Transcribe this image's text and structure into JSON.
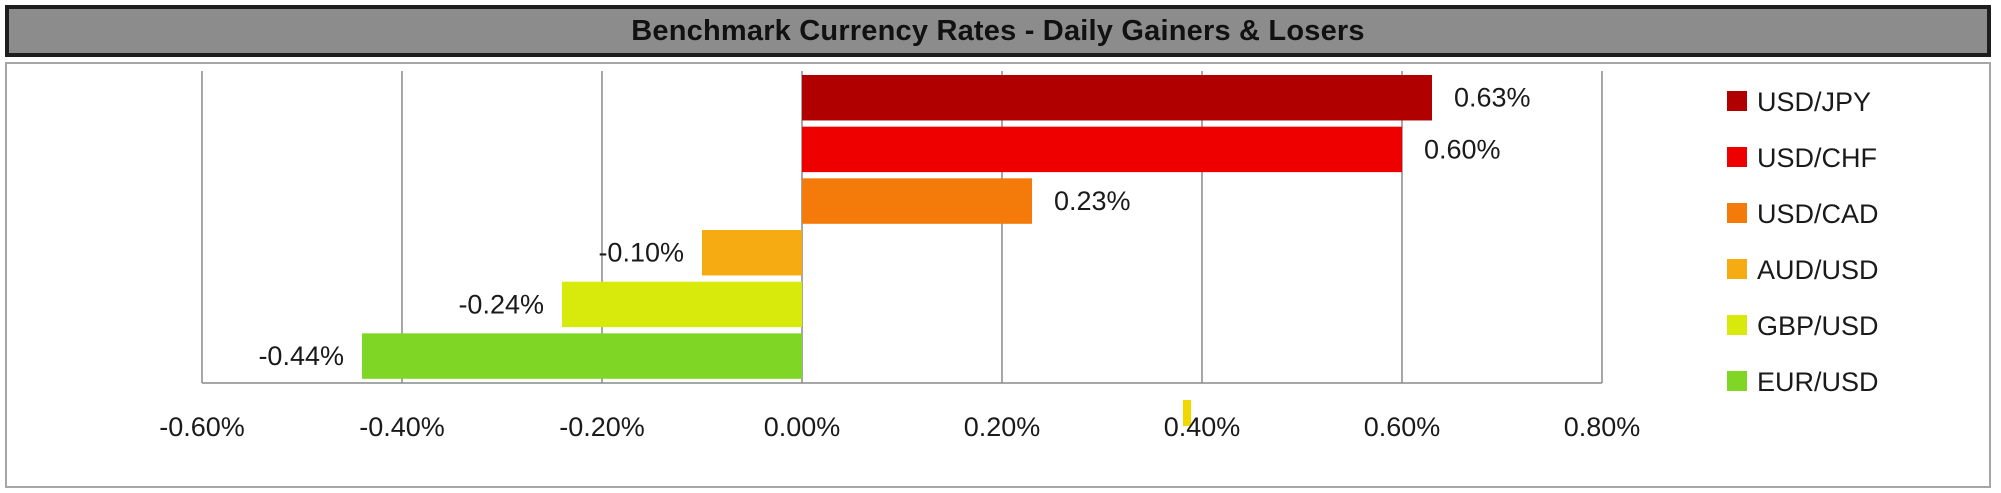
{
  "chart_data": {
    "type": "bar",
    "orientation": "horizontal",
    "title": "Benchmark Currency Rates - Daily Gainers & Losers",
    "categories": [
      "USD/JPY",
      "USD/CHF",
      "USD/CAD",
      "AUD/USD",
      "GBP/USD",
      "EUR/USD"
    ],
    "values": [
      0.63,
      0.6,
      0.23,
      -0.1,
      -0.24,
      -0.44
    ],
    "data_labels": [
      "0.63%",
      "0.60%",
      "0.23%",
      "-0.10%",
      "-0.24%",
      "-0.44%"
    ],
    "colors": [
      "#b00000",
      "#ee0000",
      "#f47a0a",
      "#f7ab12",
      "#d8ea0c",
      "#7fd624"
    ],
    "xlim": [
      -0.6,
      0.8
    ],
    "x_ticks": [
      -0.6,
      -0.4,
      -0.2,
      0.0,
      0.2,
      0.4,
      0.6,
      0.8
    ],
    "x_tick_labels": [
      "-0.60%",
      "-0.40%",
      "-0.20%",
      "0.00%",
      "0.20%",
      "0.40%",
      "0.60%",
      "0.80%"
    ],
    "grid": "vertical",
    "legend": "right",
    "marker_value": 0.385,
    "marker_color": "#f0d800"
  }
}
